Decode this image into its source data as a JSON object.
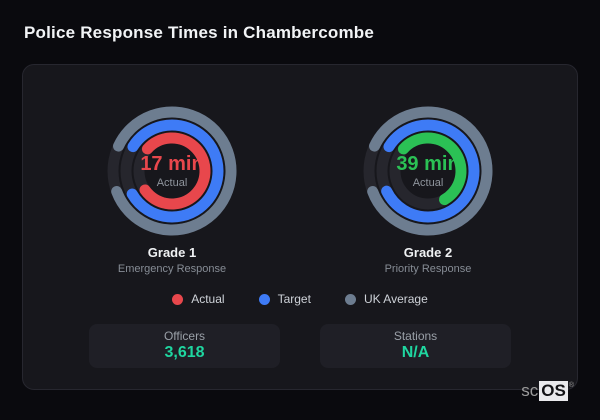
{
  "page": {
    "title": "Police Response Times in Chambercombe"
  },
  "colors": {
    "background": "#0a0a0e",
    "card": "#17171c",
    "track": "#26262d",
    "actual_red": "#e8474c",
    "actual_green": "#2bc155",
    "target_blue": "#3e7bf6",
    "uk_average_gray": "#6d7d90",
    "stat_value_teal": "#1fd6a0"
  },
  "chart_data": [
    {
      "type": "gauge",
      "title": "Grade 1",
      "subtitle": "Emergency Response",
      "center_value": "17 min",
      "center_label": "Actual",
      "value_color": "#e8474c",
      "rings": [
        {
          "name": "UK Average",
          "color": "#6d7d90",
          "start_deg": 205,
          "sweep_deg": 315,
          "percent": 87
        },
        {
          "name": "Target",
          "color": "#3e7bf6",
          "start_deg": 212,
          "sweep_deg": 298,
          "percent": 83
        },
        {
          "name": "Actual",
          "color": "#e8474c",
          "start_deg": 222,
          "sweep_deg": 283,
          "percent": 79
        }
      ]
    },
    {
      "type": "gauge",
      "title": "Grade 2",
      "subtitle": "Priority Response",
      "center_value": "39 min",
      "center_label": "Actual",
      "value_color": "#2bc155",
      "rings": [
        {
          "name": "UK Average",
          "color": "#6d7d90",
          "start_deg": 205,
          "sweep_deg": 315,
          "percent": 87
        },
        {
          "name": "Target",
          "color": "#3e7bf6",
          "start_deg": 212,
          "sweep_deg": 302,
          "percent": 84
        },
        {
          "name": "Actual",
          "color": "#2bc155",
          "start_deg": 222,
          "sweep_deg": 198,
          "percent": 55
        }
      ]
    }
  ],
  "legend": [
    {
      "label": "Actual",
      "color": "#e8474c"
    },
    {
      "label": "Target",
      "color": "#3e7bf6"
    },
    {
      "label": "UK Average",
      "color": "#6d7d90"
    }
  ],
  "stats": [
    {
      "label": "Officers",
      "value": "3,618"
    },
    {
      "label": "Stations",
      "value": "N/A"
    }
  ],
  "brand": {
    "prefix": "sc",
    "suffix": "OS",
    "reg": "®"
  }
}
